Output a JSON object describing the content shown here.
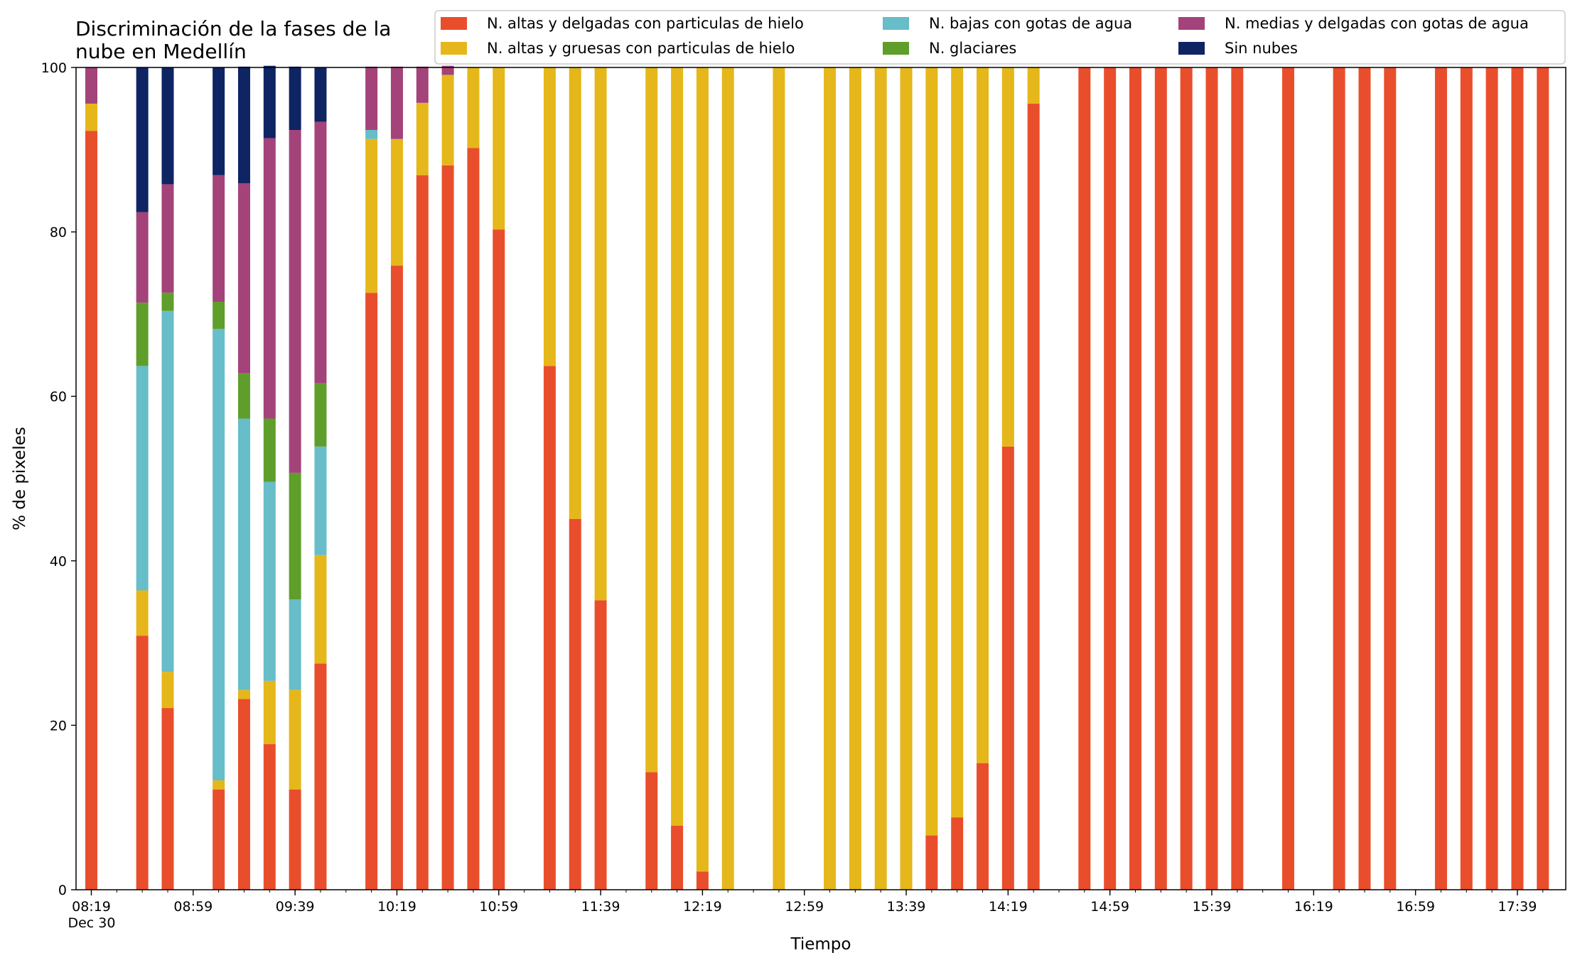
{
  "chart_data": {
    "type": "bar",
    "stacked": true,
    "title_lines": [
      "Discriminación de la fases de la",
      "nube en Medellín"
    ],
    "xlabel": "Tiempo",
    "ylabel": "% de pixeles",
    "ylim": [
      0,
      100
    ],
    "yticks": [
      0,
      20,
      40,
      60,
      80,
      100
    ],
    "xlim": [
      "08:13",
      "17:58"
    ],
    "xtick_labels": [
      "08:19",
      "08:59",
      "09:39",
      "10:19",
      "10:59",
      "11:39",
      "12:19",
      "12:59",
      "13:39",
      "14:19",
      "14:59",
      "15:39",
      "16:19",
      "16:59",
      "17:39"
    ],
    "xtick_sublabel": "Dec 30",
    "minor_tick_interval_minutes": 10,
    "grid": false,
    "legend_placement": "top-right, above plot",
    "legend_columns": 3,
    "times": [
      "08:19",
      "08:29",
      "08:39",
      "08:49",
      "08:59",
      "09:09",
      "09:19",
      "09:29",
      "09:39",
      "09:49",
      "09:59",
      "10:09",
      "10:19",
      "10:29",
      "10:39",
      "10:49",
      "10:59",
      "11:09",
      "11:19",
      "11:29",
      "11:39",
      "11:49",
      "11:59",
      "12:09",
      "12:19",
      "12:29",
      "12:39",
      "12:49",
      "12:59",
      "13:09",
      "13:19",
      "13:29",
      "13:39",
      "13:49",
      "13:59",
      "14:09",
      "14:19",
      "14:29",
      "14:39",
      "14:49",
      "14:59",
      "15:09",
      "15:19",
      "15:29",
      "15:39",
      "15:49",
      "15:59",
      "16:09",
      "16:19",
      "16:29",
      "16:39",
      "16:49",
      "16:59",
      "17:09",
      "17:19",
      "17:29",
      "17:39",
      "17:49"
    ],
    "series": [
      {
        "name": "N. altas y delgadas con particulas de hielo",
        "color": "#e94e2c",
        "values": [
          92.3,
          null,
          30.9,
          22.1,
          null,
          12.2,
          23.2,
          17.7,
          12.2,
          27.5,
          null,
          72.6,
          75.9,
          86.9,
          88.1,
          90.2,
          80.3,
          null,
          63.7,
          45.1,
          35.2,
          null,
          14.3,
          7.8,
          2.2,
          null,
          null,
          null,
          null,
          null,
          null,
          null,
          null,
          6.6,
          8.8,
          15.4,
          53.9,
          95.6,
          null,
          100,
          100,
          100,
          100,
          100,
          100,
          100,
          null,
          100,
          null,
          100,
          100,
          100,
          null,
          100,
          100,
          100,
          100,
          100
        ]
      },
      {
        "name": "N. altas y gruesas con particulas de hielo",
        "color": "#e5b71a",
        "values": [
          3.3,
          null,
          5.5,
          4.4,
          null,
          1.1,
          1.1,
          7.7,
          12.1,
          13.2,
          null,
          18.7,
          15.4,
          8.8,
          11.0,
          9.8,
          19.7,
          null,
          36.3,
          54.9,
          64.8,
          null,
          85.7,
          92.2,
          97.8,
          100,
          null,
          100,
          null,
          100,
          100,
          100,
          100,
          93.4,
          91.2,
          84.6,
          46.1,
          4.4,
          null,
          null,
          null,
          null,
          null,
          null,
          null,
          null,
          null,
          null,
          null,
          null,
          null,
          null,
          null,
          null,
          null,
          null,
          null,
          null
        ]
      },
      {
        "name": "N. bajas con gotas de agua",
        "color": "#67bdc8",
        "values": [
          null,
          null,
          27.3,
          43.9,
          null,
          54.9,
          33.0,
          24.2,
          11.0,
          13.2,
          null,
          1.1,
          null,
          null,
          null,
          null,
          null,
          null,
          null,
          null,
          null,
          null,
          null,
          null,
          null,
          null,
          null,
          null,
          null,
          null,
          null,
          null,
          null,
          null,
          null,
          null,
          null,
          null,
          null,
          null,
          null,
          null,
          null,
          null,
          null,
          null,
          null,
          null,
          null,
          null,
          null,
          null,
          null,
          null,
          null,
          null,
          null,
          null
        ]
      },
      {
        "name": "N. glaciares",
        "color": "#5f9e2a",
        "values": [
          null,
          null,
          7.7,
          2.2,
          null,
          3.3,
          5.5,
          7.7,
          15.4,
          7.7,
          null,
          null,
          null,
          null,
          null,
          null,
          null,
          null,
          null,
          null,
          null,
          null,
          null,
          null,
          null,
          null,
          null,
          null,
          null,
          null,
          null,
          null,
          null,
          null,
          null,
          null,
          null,
          null,
          null,
          null,
          null,
          null,
          null,
          null,
          null,
          null,
          null,
          null,
          null,
          null,
          null,
          null,
          null,
          null,
          null,
          null,
          null,
          null
        ]
      },
      {
        "name": "N. medias y delgadas con gotas de agua",
        "color": "#a3437a",
        "values": [
          4.4,
          null,
          11.0,
          13.2,
          null,
          15.4,
          23.1,
          34.1,
          41.7,
          31.8,
          null,
          7.7,
          8.8,
          4.4,
          1.1,
          null,
          null,
          null,
          null,
          null,
          null,
          null,
          null,
          null,
          null,
          null,
          null,
          null,
          null,
          null,
          null,
          null,
          null,
          null,
          null,
          null,
          null,
          null,
          null,
          null,
          null,
          null,
          null,
          null,
          null,
          null,
          null,
          null,
          null,
          null,
          null,
          null,
          null,
          null,
          null,
          null,
          null,
          null
        ]
      },
      {
        "name": "Sin nubes",
        "color": "#0e2463",
        "values": [
          null,
          null,
          17.6,
          14.2,
          null,
          13.1,
          14.2,
          8.8,
          7.7,
          6.6,
          null,
          null,
          null,
          null,
          null,
          null,
          null,
          null,
          null,
          null,
          null,
          null,
          null,
          null,
          null,
          null,
          null,
          null,
          null,
          null,
          null,
          null,
          null,
          null,
          null,
          null,
          null,
          null,
          null,
          null,
          null,
          null,
          null,
          null,
          null,
          null,
          null,
          null,
          null,
          null,
          null,
          null,
          null,
          null,
          null,
          null,
          null,
          null
        ]
      }
    ]
  }
}
